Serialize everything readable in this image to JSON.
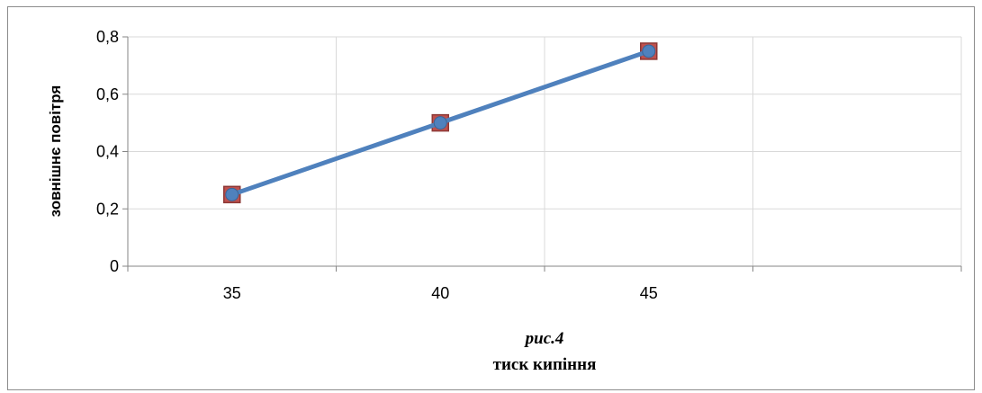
{
  "chart_data": {
    "type": "line",
    "title": "рис.4",
    "xlabel": "тиск кипіння",
    "ylabel": "зовнішнє повітря",
    "categories": [
      "35",
      "40",
      "45"
    ],
    "series": [
      {
        "values": [
          0.25,
          0.5,
          0.75
        ],
        "color": "#4f81bd",
        "marker": "circle"
      },
      {
        "values": [
          0.25,
          0.5,
          0.75
        ],
        "color": "#c0504d",
        "marker": "square"
      }
    ],
    "y_ticks": [
      "0",
      "0,2",
      "0,4",
      "0,6",
      "0,8"
    ],
    "ylim": [
      0,
      0.8
    ],
    "grid": true,
    "legend": "none"
  }
}
